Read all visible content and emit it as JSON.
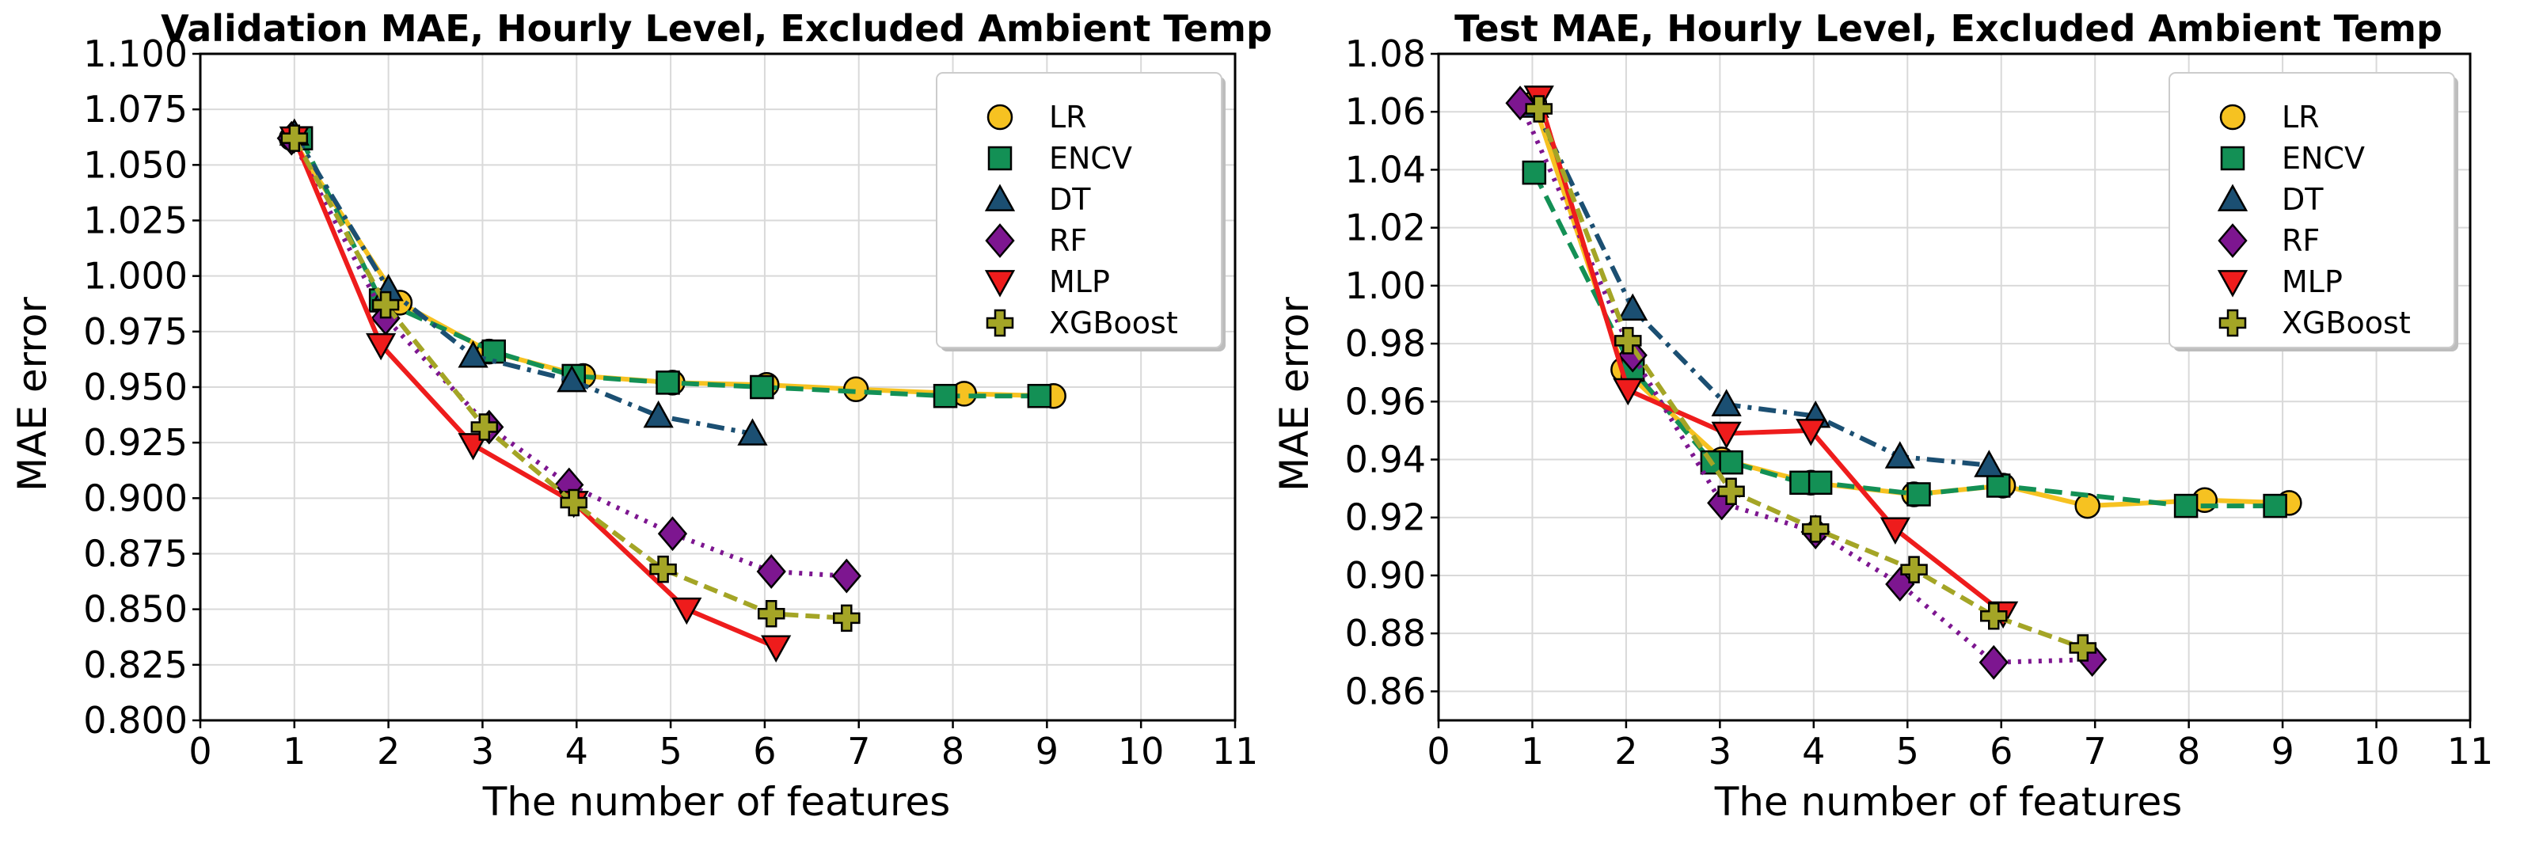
{
  "chart_data": [
    {
      "type": "line",
      "title": "Validation MAE, Hourly Level, Excluded Ambient Temp",
      "xlabel": "The number of features",
      "ylabel": "MAE error",
      "xlim": [
        0,
        11
      ],
      "ylim": [
        0.8,
        1.1
      ],
      "xticks": [
        "0",
        "1",
        "2",
        "3",
        "4",
        "5",
        "6",
        "7",
        "8",
        "9",
        "10",
        "11"
      ],
      "yticks": [
        "0.800",
        "0.825",
        "0.850",
        "0.875",
        "0.900",
        "0.925",
        "0.950",
        "0.975",
        "1.000",
        "1.025",
        "1.050",
        "1.075",
        "1.100"
      ],
      "grid": true,
      "legend_position": "top-right",
      "series": [
        {
          "name": "LR",
          "x": [
            0.97,
            2.12,
            3.07,
            4.07,
            5.02,
            6.02,
            6.97,
            8.12,
            9.07
          ],
          "y": [
            1.062,
            0.988,
            0.966,
            0.955,
            0.952,
            0.951,
            0.949,
            0.947,
            0.946
          ]
        },
        {
          "name": "ENCV",
          "x": [
            1.07,
            1.92,
            3.12,
            3.97,
            4.97,
            5.97,
            7.92,
            8.92
          ],
          "y": [
            1.062,
            0.989,
            0.966,
            0.955,
            0.952,
            0.95,
            0.946,
            0.946
          ]
        },
        {
          "name": "DT",
          "x": [
            1.0,
            2.0,
            2.9,
            3.95,
            4.87,
            5.87
          ],
          "y": [
            1.064,
            0.994,
            0.964,
            0.953,
            0.937,
            0.929
          ]
        },
        {
          "name": "RF",
          "x": [
            0.97,
            1.97,
            3.07,
            3.92,
            5.02,
            6.07,
            6.87
          ],
          "y": [
            1.062,
            0.981,
            0.932,
            0.906,
            0.884,
            0.867,
            0.865
          ]
        },
        {
          "name": "MLP",
          "x": [
            1.0,
            1.92,
            2.9,
            3.97,
            5.17,
            6.12
          ],
          "y": [
            1.062,
            0.969,
            0.924,
            0.898,
            0.85,
            0.833
          ]
        },
        {
          "name": "XGBoost",
          "x": [
            1.0,
            1.97,
            3.02,
            3.97,
            4.92,
            6.07,
            6.87
          ],
          "y": [
            1.062,
            0.987,
            0.932,
            0.898,
            0.868,
            0.848,
            0.846
          ]
        }
      ]
    },
    {
      "type": "line",
      "title": "Test MAE, Hourly Level, Excluded Ambient Temp",
      "xlabel": "The number of features",
      "ylabel": "MAE error",
      "xlim": [
        0,
        11
      ],
      "ylim": [
        0.85,
        1.08
      ],
      "xticks": [
        "0",
        "1",
        "2",
        "3",
        "4",
        "5",
        "6",
        "7",
        "8",
        "9",
        "10",
        "11"
      ],
      "yticks": [
        "0.86",
        "0.88",
        "0.90",
        "0.92",
        "0.94",
        "0.96",
        "0.98",
        "1.00",
        "1.02",
        "1.04",
        "1.06",
        "1.08"
      ],
      "grid": true,
      "legend_position": "top-right",
      "series": [
        {
          "name": "LR",
          "x": [
            1.02,
            1.97,
            3.02,
            3.97,
            5.07,
            6.02,
            6.92,
            8.17,
            9.07
          ],
          "y": [
            1.063,
            0.971,
            0.94,
            0.932,
            0.928,
            0.931,
            0.924,
            0.926,
            0.925
          ]
        },
        {
          "name": "ENCV",
          "x": [
            1.02,
            2.07,
            2.92,
            3.12,
            3.87,
            4.07,
            5.12,
            5.97,
            7.97,
            8.92
          ],
          "y": [
            1.039,
            0.971,
            0.939,
            0.939,
            0.932,
            0.932,
            0.928,
            0.931,
            0.924,
            0.924
          ]
        },
        {
          "name": "DT",
          "x": [
            1.02,
            2.07,
            3.07,
            4.02,
            4.92,
            5.87
          ],
          "y": [
            1.062,
            0.992,
            0.959,
            0.955,
            0.941,
            0.938
          ]
        },
        {
          "name": "RF",
          "x": [
            0.87,
            2.07,
            3.02,
            4.02,
            4.92,
            5.92,
            6.97
          ],
          "y": [
            1.063,
            0.976,
            0.925,
            0.915,
            0.897,
            0.87,
            0.871
          ]
        },
        {
          "name": "MLP",
          "x": [
            1.07,
            2.02,
            3.07,
            3.97,
            4.87,
            6.02
          ],
          "y": [
            1.065,
            0.964,
            0.949,
            0.95,
            0.916,
            0.887
          ]
        },
        {
          "name": "XGBoost",
          "x": [
            1.07,
            2.02,
            3.12,
            4.02,
            5.07,
            5.92,
            6.87
          ],
          "y": [
            1.061,
            0.981,
            0.929,
            0.916,
            0.902,
            0.886,
            0.875
          ]
        }
      ]
    }
  ],
  "styles": {
    "LR": {
      "line": "#f6c221",
      "marker": "circle",
      "dash": ""
    },
    "ENCV": {
      "line": "#139055",
      "marker": "square",
      "dash": "22,11"
    },
    "DT": {
      "line": "#1b4f72",
      "marker": "triangle-up",
      "dash": "22,9,5,9"
    },
    "RF": {
      "line": "#7d1690",
      "marker": "diamond",
      "dash": "4,9"
    },
    "MLP": {
      "line": "#ee1c1c",
      "marker": "triangle-down",
      "dash": ""
    },
    "XGBoost": {
      "line": "#a4a526",
      "marker": "plus",
      "dash": "18,9"
    }
  }
}
